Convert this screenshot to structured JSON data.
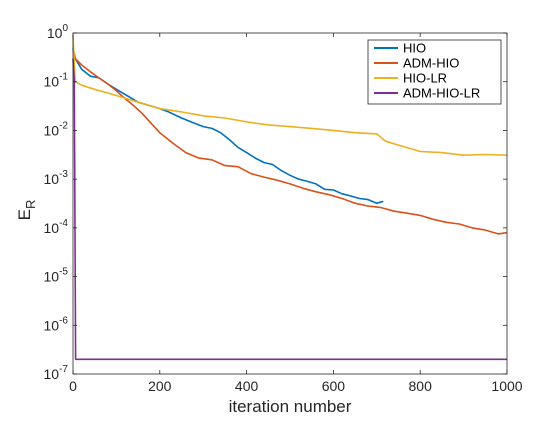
{
  "chart_data": {
    "type": "line",
    "xlabel": "iteration number",
    "ylabel": "E",
    "ylabel_sub": "R",
    "xlim": [
      0,
      1000
    ],
    "ylim": [
      1e-07,
      1
    ],
    "yscale": "log",
    "grid": false,
    "legend_position": "top-right",
    "x_ticks": [
      "0",
      "200",
      "400",
      "600",
      "800",
      "1000"
    ],
    "y_ticks": [
      {
        "base": "10",
        "exp": "0"
      },
      {
        "base": "10",
        "exp": "-1"
      },
      {
        "base": "10",
        "exp": "-2"
      },
      {
        "base": "10",
        "exp": "-3"
      },
      {
        "base": "10",
        "exp": "-4"
      },
      {
        "base": "10",
        "exp": "-5"
      },
      {
        "base": "10",
        "exp": "-6"
      },
      {
        "base": "10",
        "exp": "-7"
      }
    ],
    "series": [
      {
        "name": "HIO",
        "color": "#0072BD",
        "x": [
          0,
          5,
          20,
          40,
          60,
          80,
          100,
          150,
          200,
          220,
          250,
          280,
          300,
          320,
          340,
          360,
          380,
          400,
          420,
          440,
          460,
          480,
          500,
          520,
          540,
          560,
          580,
          600,
          620,
          640,
          660,
          680,
          700,
          715
        ],
        "y": [
          0.5,
          0.3,
          0.18,
          0.13,
          0.12,
          0.09,
          0.07,
          0.038,
          0.028,
          0.024,
          0.018,
          0.014,
          0.012,
          0.011,
          0.009,
          0.0065,
          0.0045,
          0.0035,
          0.0027,
          0.0022,
          0.002,
          0.0015,
          0.0012,
          0.001,
          0.0009,
          0.0008,
          0.00062,
          0.0006,
          0.0005,
          0.00045,
          0.0004,
          0.00038,
          0.00032,
          0.00035
        ]
      },
      {
        "name": "ADM-HIO",
        "color": "#D95319",
        "x": [
          0,
          5,
          20,
          40,
          60,
          80,
          100,
          120,
          140,
          160,
          180,
          200,
          230,
          260,
          290,
          320,
          350,
          380,
          410,
          440,
          470,
          500,
          530,
          560,
          590,
          620,
          650,
          680,
          710,
          740,
          770,
          800,
          830,
          860,
          890,
          920,
          950,
          980,
          1000
        ],
        "y": [
          0.45,
          0.3,
          0.22,
          0.16,
          0.12,
          0.09,
          0.065,
          0.045,
          0.032,
          0.022,
          0.014,
          0.009,
          0.0055,
          0.0035,
          0.0027,
          0.0025,
          0.0019,
          0.0018,
          0.0013,
          0.0011,
          0.00095,
          0.0008,
          0.00065,
          0.00055,
          0.00048,
          0.0004,
          0.00032,
          0.00028,
          0.00026,
          0.00022,
          0.0002,
          0.00018,
          0.00015,
          0.00013,
          0.00012,
          0.0001,
          9e-05,
          7.5e-05,
          8e-05
        ]
      },
      {
        "name": "HIO-LR",
        "color": "#EDB120",
        "x": [
          0,
          5,
          20,
          50,
          100,
          150,
          200,
          250,
          300,
          350,
          400,
          450,
          500,
          550,
          600,
          650,
          700,
          720,
          750,
          800,
          850,
          900,
          950,
          1000
        ],
        "y": [
          0.9,
          0.1,
          0.085,
          0.07,
          0.052,
          0.038,
          0.028,
          0.024,
          0.02,
          0.018,
          0.015,
          0.013,
          0.012,
          0.011,
          0.01,
          0.009,
          0.0085,
          0.006,
          0.005,
          0.0037,
          0.0035,
          0.0031,
          0.0032,
          0.0031
        ]
      },
      {
        "name": "ADM-HIO-LR",
        "color": "#7E2F8E",
        "x": [
          0,
          3,
          6,
          10,
          50,
          100,
          200,
          300,
          400,
          500,
          600,
          700,
          800,
          900,
          1000
        ],
        "y": [
          0.3,
          0.1,
          2e-07,
          2e-07,
          2e-07,
          2e-07,
          2e-07,
          2e-07,
          2e-07,
          2e-07,
          2e-07,
          2e-07,
          2e-07,
          2e-07,
          2e-07
        ]
      }
    ]
  }
}
